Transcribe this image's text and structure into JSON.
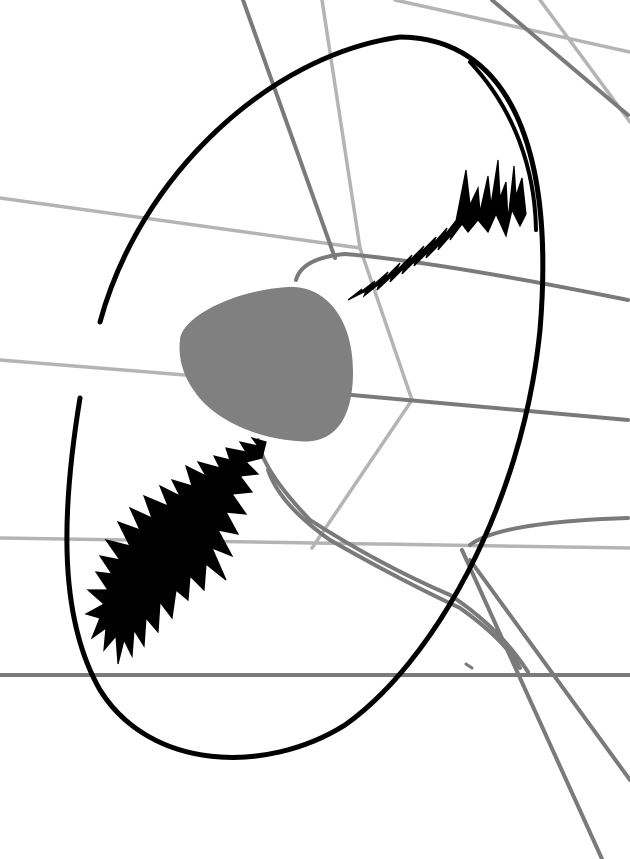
{
  "drawing": {
    "subject": "line-art sketch",
    "colors": {
      "background": "#ffffff",
      "ink": "#000000",
      "dark_guide": "#7a7a7a",
      "light_guide": "#b4b4b4",
      "pupil_fill": "#808080"
    }
  }
}
